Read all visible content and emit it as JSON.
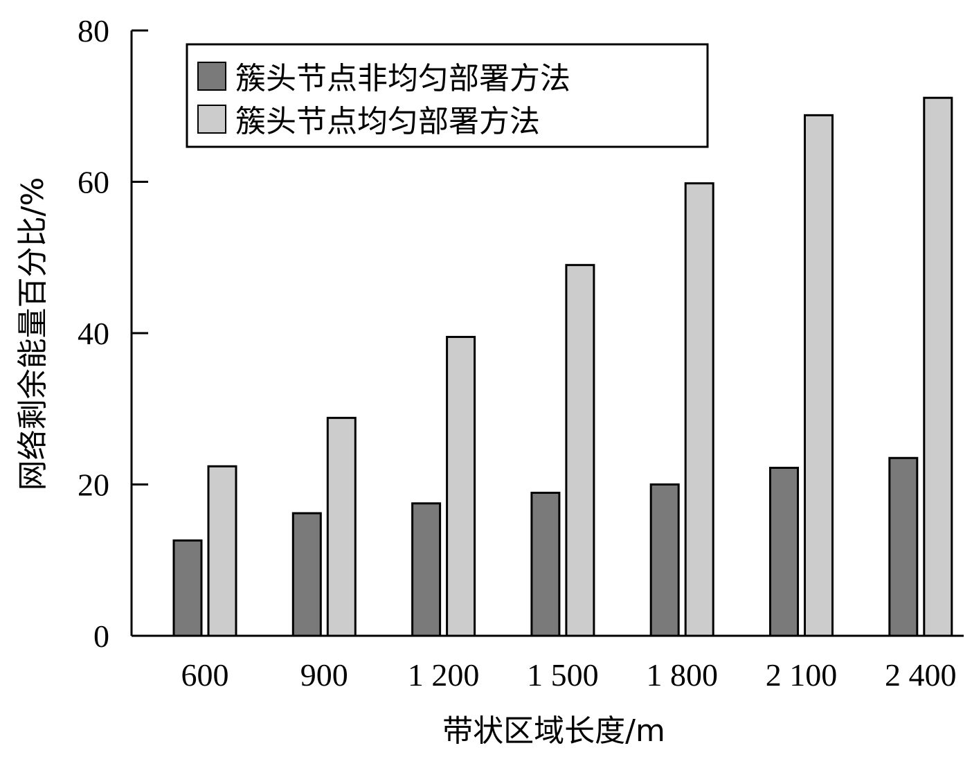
{
  "chart_data": {
    "type": "bar",
    "categories": [
      "600",
      "900",
      "1 200",
      "1 500",
      "1 800",
      "2 100",
      "2 400"
    ],
    "series": [
      {
        "name": "簇头节点非均匀部署方法",
        "color": "#7a7a7a",
        "values": [
          12.6,
          16.2,
          17.5,
          18.9,
          20.0,
          22.2,
          23.5
        ]
      },
      {
        "name": "簇头节点均匀部署方法",
        "color": "#cccccc",
        "values": [
          22.4,
          28.8,
          39.5,
          49.0,
          59.8,
          68.8,
          71.1
        ]
      }
    ],
    "xlabel": "带状区域长度/m",
    "ylabel": "网络剩余能量百分比/%",
    "ylim": [
      0,
      80
    ],
    "yticks": [
      0,
      20,
      40,
      60,
      80
    ],
    "legend_position": "top-left",
    "grid": false
  }
}
